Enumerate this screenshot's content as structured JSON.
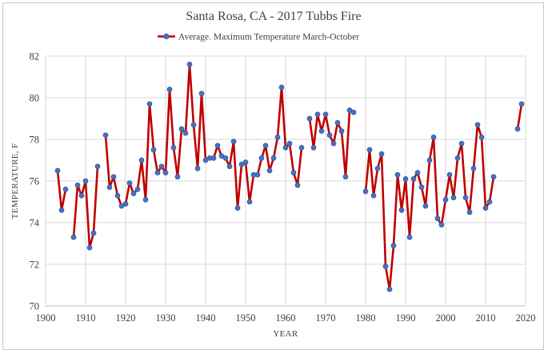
{
  "chart_data": {
    "type": "line",
    "title": "Santa Rosa, CA - 2017 Tubbs Fire",
    "xlabel": "YEAR",
    "ylabel": "TEMPERATURE, F",
    "xlim": [
      1900,
      2020
    ],
    "ylim": [
      70,
      82
    ],
    "xticks": [
      1900,
      1910,
      1920,
      1930,
      1940,
      1950,
      1960,
      1970,
      1980,
      1990,
      2000,
      2010,
      2020
    ],
    "yticks": [
      70,
      72,
      74,
      76,
      78,
      80,
      82
    ],
    "grid": true,
    "legend_position": "top-center",
    "colors": {
      "line": "#c00000",
      "marker": "#4472c4",
      "marker_edge": "#2f5597"
    },
    "series": [
      {
        "name": "Average. Maximum Temperature March-October",
        "segments": [
          [
            [
              1903,
              76.5
            ],
            [
              1904,
              74.6
            ],
            [
              1905,
              75.6
            ]
          ],
          [
            [
              1907,
              73.3
            ],
            [
              1908,
              75.8
            ],
            [
              1909,
              75.3
            ],
            [
              1910,
              76.0
            ],
            [
              1911,
              72.8
            ],
            [
              1912,
              73.5
            ],
            [
              1913,
              76.7
            ]
          ],
          [
            [
              1915,
              78.2
            ],
            [
              1916,
              75.7
            ],
            [
              1917,
              76.2
            ],
            [
              1918,
              75.3
            ],
            [
              1919,
              74.8
            ],
            [
              1920,
              74.9
            ],
            [
              1921,
              75.9
            ],
            [
              1922,
              75.4
            ],
            [
              1923,
              75.6
            ],
            [
              1924,
              77.0
            ],
            [
              1925,
              75.1
            ],
            [
              1926,
              79.7
            ],
            [
              1927,
              77.5
            ],
            [
              1928,
              76.4
            ],
            [
              1929,
              76.7
            ],
            [
              1930,
              76.4
            ],
            [
              1931,
              80.4
            ],
            [
              1932,
              77.6
            ],
            [
              1933,
              76.2
            ],
            [
              1934,
              78.5
            ],
            [
              1935,
              78.3
            ],
            [
              1936,
              81.6
            ],
            [
              1937,
              78.7
            ],
            [
              1938,
              76.6
            ],
            [
              1939,
              80.2
            ],
            [
              1940,
              77.0
            ],
            [
              1941,
              77.1
            ],
            [
              1942,
              77.1
            ],
            [
              1943,
              77.7
            ],
            [
              1944,
              77.2
            ],
            [
              1945,
              77.1
            ],
            [
              1946,
              76.7
            ],
            [
              1947,
              77.9
            ],
            [
              1948,
              74.7
            ],
            [
              1949,
              76.8
            ],
            [
              1950,
              76.9
            ],
            [
              1951,
              75.0
            ],
            [
              1952,
              76.3
            ],
            [
              1953,
              76.3
            ],
            [
              1954,
              77.1
            ],
            [
              1955,
              77.7
            ],
            [
              1956,
              76.5
            ],
            [
              1957,
              77.1
            ],
            [
              1958,
              78.1
            ],
            [
              1959,
              80.5
            ],
            [
              1960,
              77.6
            ],
            [
              1961,
              77.8
            ],
            [
              1962,
              76.4
            ],
            [
              1963,
              75.8
            ],
            [
              1964,
              77.6
            ]
          ],
          [
            [
              1966,
              79.0
            ],
            [
              1967,
              77.6
            ],
            [
              1968,
              79.2
            ],
            [
              1969,
              78.4
            ],
            [
              1970,
              79.2
            ],
            [
              1971,
              78.2
            ],
            [
              1972,
              77.8
            ],
            [
              1973,
              78.8
            ],
            [
              1974,
              78.4
            ],
            [
              1975,
              76.2
            ],
            [
              1976,
              79.4
            ],
            [
              1977,
              79.3
            ]
          ],
          [
            [
              1980,
              75.5
            ],
            [
              1981,
              77.5
            ],
            [
              1982,
              75.3
            ],
            [
              1983,
              76.6
            ],
            [
              1984,
              77.3
            ],
            [
              1985,
              71.9
            ],
            [
              1986,
              70.8
            ],
            [
              1987,
              72.9
            ],
            [
              1988,
              76.3
            ],
            [
              1989,
              74.6
            ],
            [
              1990,
              76.1
            ],
            [
              1991,
              73.3
            ],
            [
              1992,
              76.1
            ],
            [
              1993,
              76.4
            ],
            [
              1994,
              75.7
            ],
            [
              1995,
              74.8
            ],
            [
              1996,
              77.0
            ],
            [
              1997,
              78.1
            ],
            [
              1998,
              74.2
            ],
            [
              1999,
              73.9
            ],
            [
              2000,
              75.1
            ],
            [
              2001,
              76.3
            ],
            [
              2002,
              75.2
            ],
            [
              2003,
              77.1
            ],
            [
              2004,
              77.8
            ],
            [
              2005,
              75.2
            ],
            [
              2006,
              74.5
            ],
            [
              2007,
              76.6
            ],
            [
              2008,
              78.7
            ],
            [
              2009,
              78.1
            ],
            [
              2010,
              74.7
            ],
            [
              2011,
              75.0
            ],
            [
              2012,
              76.2
            ]
          ],
          [
            [
              2018,
              78.5
            ],
            [
              2019,
              79.7
            ]
          ]
        ]
      }
    ]
  }
}
